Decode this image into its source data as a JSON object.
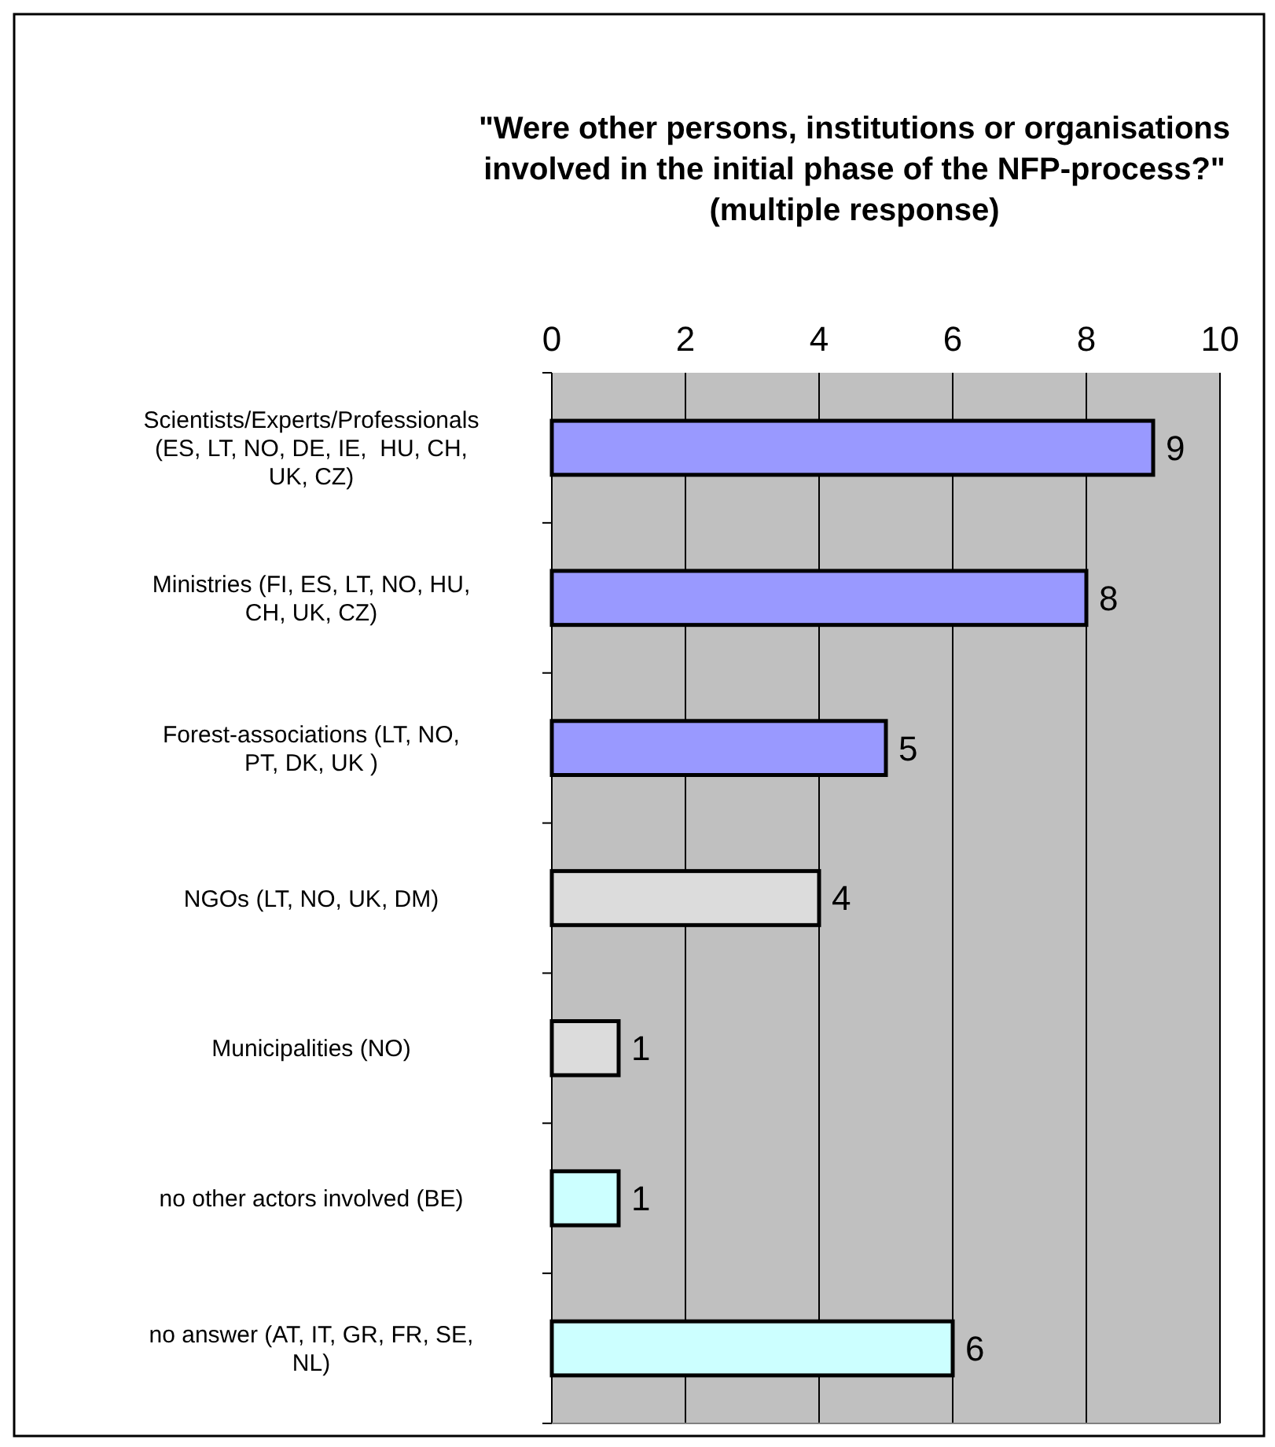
{
  "chart_data": {
    "type": "bar",
    "orientation": "horizontal",
    "title": "\"Were other persons, institutions or organisations involved in the initial phase of the NFP-process?\" (multiple response)",
    "categories": [
      "Scientists/Experts/Professionals (ES, LT, NO, DE, IE,  HU, CH, UK, CZ)",
      "Ministries (FI, ES, LT, NO, HU, CH, UK, CZ)",
      "Forest-associations (LT, NO, PT, DK, UK )",
      "NGOs (LT, NO, UK, DM)",
      "Municipalities (NO)",
      "no other actors involved (BE)",
      "no answer (AT, IT, GR, FR, SE, NL)"
    ],
    "values": [
      9,
      8,
      5,
      4,
      1,
      1,
      6
    ],
    "colors": [
      "#9999ff",
      "#9999ff",
      "#9999ff",
      "#dcdcdc",
      "#dcdcdc",
      "#ccffff",
      "#ccffff"
    ],
    "xlim": [
      0,
      10
    ],
    "xticks": [
      0,
      2,
      4,
      6,
      8,
      10
    ],
    "grid": "x",
    "data_labels": true
  }
}
